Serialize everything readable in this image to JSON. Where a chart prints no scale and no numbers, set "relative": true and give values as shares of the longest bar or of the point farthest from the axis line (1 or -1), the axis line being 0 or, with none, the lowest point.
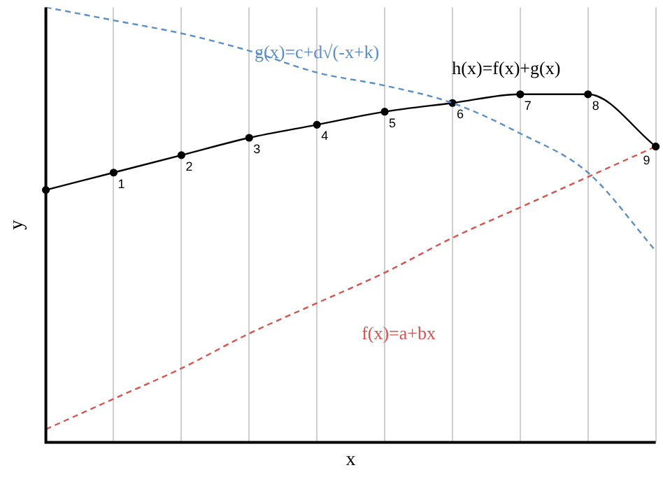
{
  "chart_data": {
    "type": "line",
    "xlabel": "x",
    "ylabel": "y",
    "relative": true,
    "grid": "x",
    "legend": false,
    "categories": [
      null,
      null,
      null,
      null,
      null,
      null,
      null,
      null,
      null,
      null
    ],
    "series": [
      {
        "name": "g(x)=c+d√(-x+k)",
        "color": "#5b8fc9",
        "line_style": "dashed",
        "marker": "none",
        "values": [
          1,
          0.97,
          0.94,
          0.9,
          0.85,
          0.82,
          0.78,
          0.71,
          0.62,
          0.44
        ]
      },
      {
        "name": "h(x)=f(x)+g(x)",
        "color": "#000000",
        "line_style": "solid",
        "marker": "circle",
        "values": [
          0.58,
          0.62,
          0.66,
          0.7,
          0.73,
          0.76,
          0.78,
          0.8,
          0.8,
          0.68
        ]
      },
      {
        "name": "f(x)=a+bx",
        "color": "#d9534f",
        "line_style": "dashed",
        "marker": "none",
        "values": [
          0.03,
          0.1,
          0.17,
          0.25,
          0.32,
          0.39,
          0.47,
          0.54,
          0.61,
          0.68
        ]
      }
    ],
    "annotations": [
      "1",
      "2",
      "3",
      "4",
      "5",
      "6",
      "7",
      "8",
      "9"
    ]
  }
}
